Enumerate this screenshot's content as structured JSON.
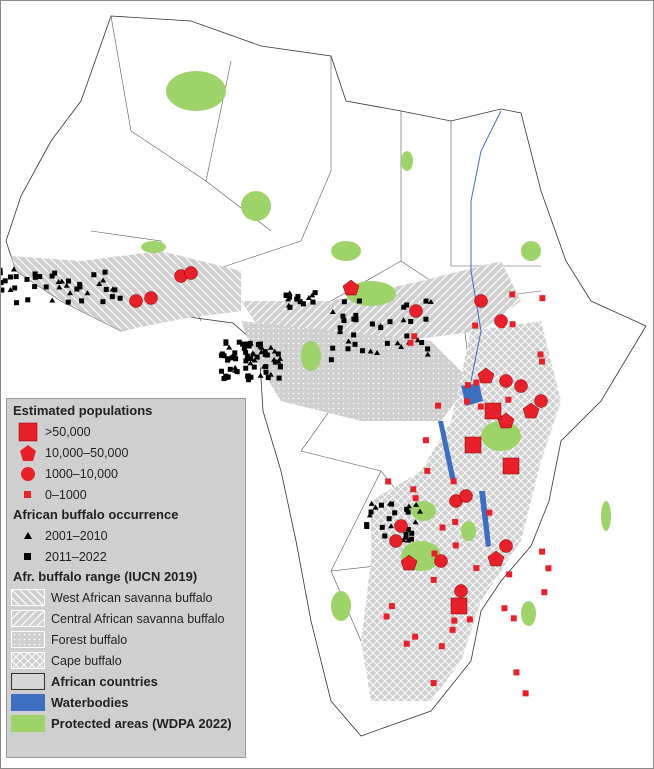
{
  "legend": {
    "populations_title": "Estimated populations",
    "populations": [
      {
        "label": ">50,000",
        "symbol": "square"
      },
      {
        "label": "10,000–50,000",
        "symbol": "pentagon"
      },
      {
        "label": "1000–10,000",
        "symbol": "circle"
      },
      {
        "label": "0–1000",
        "symbol": "small-square"
      }
    ],
    "occurrence_title": "African buffalo occurrence",
    "occurrence": [
      {
        "label": "2001–2010",
        "symbol": "triangle"
      },
      {
        "label": "2011–2022",
        "symbol": "square"
      }
    ],
    "range_title": "Afr. buffalo range (IUCN 2019)",
    "range": [
      {
        "label": "West African savanna buffalo",
        "pattern": "back-diagonal"
      },
      {
        "label": "Central African savanna buffalo",
        "pattern": "diagonal"
      },
      {
        "label": "Forest buffalo",
        "pattern": "dots"
      },
      {
        "label": "Cape buffalo",
        "pattern": "crosshatch"
      }
    ],
    "layers": [
      {
        "label": "African countries",
        "color": "#d6d6d6"
      },
      {
        "label": "Waterbodies",
        "color": "#3d6ec0"
      },
      {
        "label": "Protected areas (WDPA 2022)",
        "color": "#9ed36a"
      }
    ]
  },
  "colors": {
    "population": "#e8202a",
    "occurrence": "#000000",
    "range": "#bdbdbd",
    "land": "#ffffff",
    "water": "#3d6ec0",
    "protected": "#9ed36a"
  }
}
